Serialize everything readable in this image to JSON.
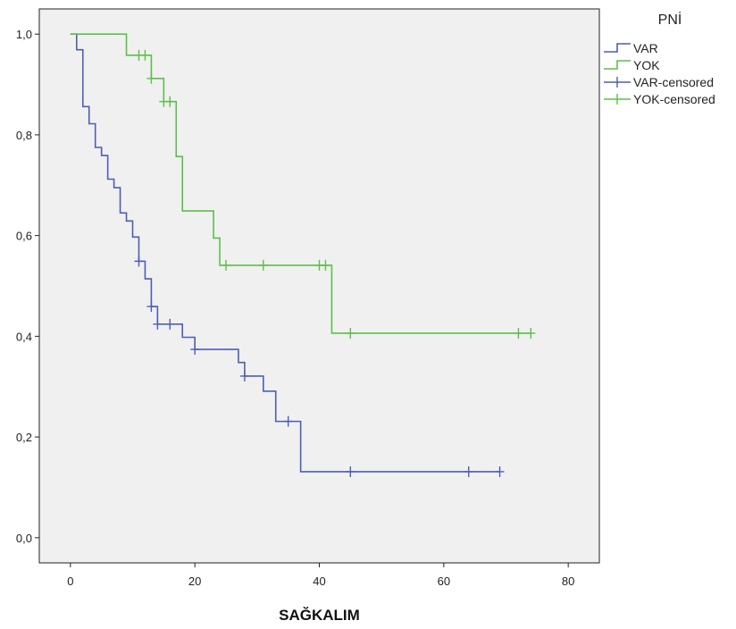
{
  "chart_data": {
    "type": "line",
    "title": "",
    "xlabel": "SAĞKALIM",
    "ylabel": "",
    "xlim": [
      -5,
      85
    ],
    "ylim": [
      -0.05,
      1.05
    ],
    "x_ticks": [
      0,
      20,
      40,
      60,
      80
    ],
    "x_tick_labels": [
      "0",
      "20",
      "40",
      "60",
      "80"
    ],
    "y_ticks": [
      0.0,
      0.2,
      0.4,
      0.6,
      0.8,
      1.0
    ],
    "y_tick_labels": [
      "0,0",
      "0,2",
      "0,4",
      "0,6",
      "0,8",
      "1,0"
    ],
    "grid": false,
    "plot_background": "#f0f0f0",
    "legend": {
      "title": "PNİ",
      "placement": "top-right, outside plot",
      "entries": [
        "VAR",
        "YOK",
        "VAR-censored",
        "YOK-censored"
      ]
    },
    "series": [
      {
        "name": "VAR",
        "color": "#4b5fb5",
        "step_points": [
          [
            0,
            1.0
          ],
          [
            1,
            0.969
          ],
          [
            2,
            0.856
          ],
          [
            3,
            0.822
          ],
          [
            4,
            0.775
          ],
          [
            5,
            0.759
          ],
          [
            6,
            0.712
          ],
          [
            7,
            0.695
          ],
          [
            8,
            0.645
          ],
          [
            9,
            0.629
          ],
          [
            10,
            0.597
          ],
          [
            11,
            0.549
          ],
          [
            12,
            0.514
          ],
          [
            13,
            0.459
          ],
          [
            14,
            0.424
          ],
          [
            18,
            0.398
          ],
          [
            20,
            0.374
          ],
          [
            27,
            0.348
          ],
          [
            28,
            0.321
          ],
          [
            31,
            0.291
          ],
          [
            33,
            0.231
          ],
          [
            37,
            0.131
          ],
          [
            69,
            0.131
          ]
        ],
        "censored": [
          [
            11,
            0.549
          ],
          [
            13,
            0.459
          ],
          [
            14,
            0.424
          ],
          [
            16,
            0.424
          ],
          [
            20,
            0.374
          ],
          [
            28,
            0.321
          ],
          [
            35,
            0.231
          ],
          [
            45,
            0.131
          ],
          [
            64,
            0.131
          ],
          [
            69,
            0.131
          ]
        ]
      },
      {
        "name": "YOK",
        "color": "#5cbf4a",
        "step_points": [
          [
            0,
            1.0
          ],
          [
            9,
            0.958
          ],
          [
            13,
            0.912
          ],
          [
            15,
            0.866
          ],
          [
            17,
            0.757
          ],
          [
            18,
            0.649
          ],
          [
            23,
            0.595
          ],
          [
            24,
            0.541
          ],
          [
            42,
            0.406
          ],
          [
            74,
            0.406
          ]
        ],
        "censored": [
          [
            11,
            0.958
          ],
          [
            12,
            0.958
          ],
          [
            13,
            0.912
          ],
          [
            15,
            0.866
          ],
          [
            16,
            0.866
          ],
          [
            25,
            0.541
          ],
          [
            31,
            0.541
          ],
          [
            40,
            0.541
          ],
          [
            41,
            0.541
          ],
          [
            45,
            0.406
          ],
          [
            72,
            0.406
          ],
          [
            74,
            0.406
          ]
        ]
      }
    ]
  }
}
